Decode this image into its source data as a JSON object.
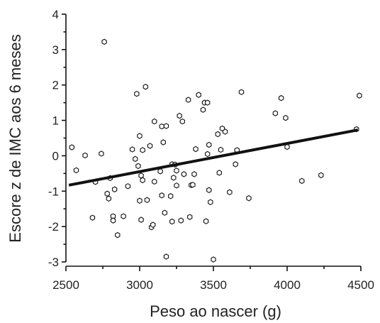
{
  "chart_data": {
    "type": "scatter",
    "xlabel": "Peso ao nascer (g)",
    "ylabel": "Escore z de IMC aos 6 meses",
    "xlim": [
      2500,
      4500
    ],
    "ylim": [
      -3,
      4
    ],
    "x_ticks": [
      2500,
      3000,
      3500,
      4000,
      4500
    ],
    "y_ticks": [
      -3,
      -2,
      -1,
      0,
      1,
      2,
      3,
      4
    ],
    "x_tick_labels": [
      "2500",
      "3000",
      "3500",
      "4000",
      "4500"
    ],
    "y_tick_labels": [
      "-3",
      "-2",
      "-1",
      "0",
      "1",
      "2",
      "3",
      "4"
    ],
    "grid": false,
    "trendline": {
      "x": [
        2520,
        4480
      ],
      "y": [
        -0.83,
        0.73
      ]
    },
    "points": [
      {
        "x": 2540,
        "y": 0.24
      },
      {
        "x": 2570,
        "y": -0.41
      },
      {
        "x": 2630,
        "y": 0.01
      },
      {
        "x": 2680,
        "y": -1.75
      },
      {
        "x": 2700,
        "y": -0.74
      },
      {
        "x": 2740,
        "y": 0.06
      },
      {
        "x": 2760,
        "y": 3.22
      },
      {
        "x": 2780,
        "y": -1.07
      },
      {
        "x": 2790,
        "y": -1.21
      },
      {
        "x": 2800,
        "y": -0.63
      },
      {
        "x": 2820,
        "y": -1.71
      },
      {
        "x": 2820,
        "y": -1.83
      },
      {
        "x": 2830,
        "y": -0.95
      },
      {
        "x": 2850,
        "y": -2.24
      },
      {
        "x": 2890,
        "y": -1.71
      },
      {
        "x": 2920,
        "y": -0.86
      },
      {
        "x": 2950,
        "y": 0.18
      },
      {
        "x": 2970,
        "y": -0.09
      },
      {
        "x": 2980,
        "y": 1.75
      },
      {
        "x": 2990,
        "y": -0.29
      },
      {
        "x": 3000,
        "y": -1.27
      },
      {
        "x": 3000,
        "y": 0.56
      },
      {
        "x": 3010,
        "y": -0.56
      },
      {
        "x": 3010,
        "y": -1.81
      },
      {
        "x": 3020,
        "y": 0.16
      },
      {
        "x": 3020,
        "y": -0.69
      },
      {
        "x": 3040,
        "y": 1.95
      },
      {
        "x": 3050,
        "y": -1.25
      },
      {
        "x": 3070,
        "y": 0.28
      },
      {
        "x": 3080,
        "y": -2.02
      },
      {
        "x": 3090,
        "y": -1.95
      },
      {
        "x": 3100,
        "y": 0.97
      },
      {
        "x": 3100,
        "y": -0.73
      },
      {
        "x": 3140,
        "y": -0.44
      },
      {
        "x": 3150,
        "y": -1.12
      },
      {
        "x": 3150,
        "y": 0.83
      },
      {
        "x": 3160,
        "y": 0.38
      },
      {
        "x": 3170,
        "y": -1.61
      },
      {
        "x": 3180,
        "y": -2.85
      },
      {
        "x": 3180,
        "y": 0.84
      },
      {
        "x": 3210,
        "y": -1.14
      },
      {
        "x": 3220,
        "y": -1.86
      },
      {
        "x": 3220,
        "y": -0.24
      },
      {
        "x": 3230,
        "y": -0.62
      },
      {
        "x": 3240,
        "y": -0.25
      },
      {
        "x": 3250,
        "y": -0.42
      },
      {
        "x": 3250,
        "y": -0.84
      },
      {
        "x": 3270,
        "y": 1.13
      },
      {
        "x": 3280,
        "y": -1.83
      },
      {
        "x": 3290,
        "y": 0.97
      },
      {
        "x": 3300,
        "y": -0.52
      },
      {
        "x": 3330,
        "y": 1.58
      },
      {
        "x": 3340,
        "y": -1.73
      },
      {
        "x": 3350,
        "y": -0.83
      },
      {
        "x": 3360,
        "y": -0.82
      },
      {
        "x": 3370,
        "y": -0.52
      },
      {
        "x": 3380,
        "y": 0.19
      },
      {
        "x": 3400,
        "y": 1.72
      },
      {
        "x": 3430,
        "y": 1.3
      },
      {
        "x": 3440,
        "y": 1.5
      },
      {
        "x": 3450,
        "y": -1.85
      },
      {
        "x": 3460,
        "y": 1.5
      },
      {
        "x": 3460,
        "y": 0.05
      },
      {
        "x": 3470,
        "y": -0.97
      },
      {
        "x": 3470,
        "y": 0.31
      },
      {
        "x": 3480,
        "y": -1.31
      },
      {
        "x": 3500,
        "y": -2.93
      },
      {
        "x": 3530,
        "y": 0.61
      },
      {
        "x": 3550,
        "y": 0.17
      },
      {
        "x": 3560,
        "y": 0.77
      },
      {
        "x": 3580,
        "y": 0.68
      },
      {
        "x": 3610,
        "y": -1.03
      },
      {
        "x": 3650,
        "y": -0.24
      },
      {
        "x": 3660,
        "y": 0.16
      },
      {
        "x": 3690,
        "y": 1.8
      },
      {
        "x": 3740,
        "y": -1.2
      },
      {
        "x": 3920,
        "y": 1.2
      },
      {
        "x": 3960,
        "y": 1.63
      },
      {
        "x": 3990,
        "y": 1.07
      },
      {
        "x": 4000,
        "y": 0.25
      },
      {
        "x": 4100,
        "y": -0.71
      },
      {
        "x": 4230,
        "y": -0.55
      },
      {
        "x": 4470,
        "y": 0.75
      },
      {
        "x": 4490,
        "y": 1.7
      },
      {
        "x": 3540,
        "y": -0.48
      }
    ]
  }
}
